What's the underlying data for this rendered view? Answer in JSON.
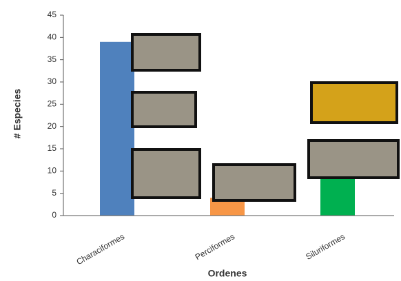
{
  "chart_data": {
    "type": "bar",
    "x_label": "Ordenes",
    "y_label": "# Especies",
    "categories": [
      "Characiformes",
      "Perciformes",
      "Siluriformes"
    ],
    "values": [
      39,
      4,
      9
    ],
    "colors": [
      "#4f81bd",
      "#f79646",
      "#00b050"
    ],
    "ylim": [
      0,
      45
    ],
    "yticks": [
      0,
      5,
      10,
      15,
      20,
      25,
      30,
      35,
      40,
      45
    ],
    "grid": false
  }
}
